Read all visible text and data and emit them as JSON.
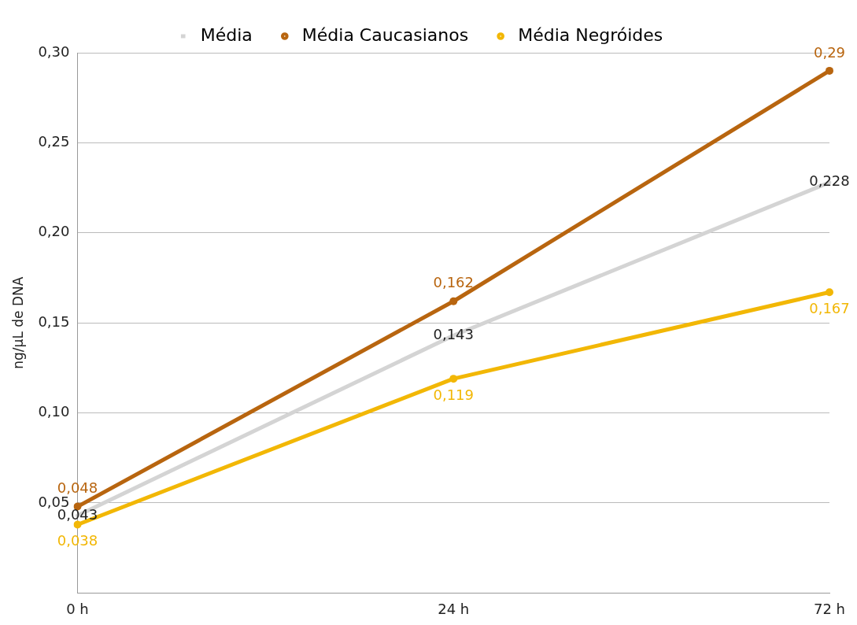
{
  "chart_data": {
    "type": "line",
    "ylabel": "ng/µL de DNA",
    "categories": [
      "0 h",
      "24 h",
      "72 h"
    ],
    "series": [
      {
        "name": "Média",
        "color": "#d4d4d4",
        "marker": "none",
        "values": [
          0.043,
          0.143,
          0.228
        ],
        "value_labels": [
          "0,043",
          "0,143",
          "0,228"
        ]
      },
      {
        "name": "Média Caucasianos",
        "color": "#b8650f",
        "marker": "circle",
        "values": [
          0.048,
          0.162,
          0.29
        ],
        "value_labels": [
          "0,048",
          "0,162",
          "0,29"
        ]
      },
      {
        "name": "Média Negróides",
        "color": "#f2b705",
        "marker": "circle",
        "values": [
          0.038,
          0.119,
          0.167
        ],
        "value_labels": [
          "0,038",
          "0,119",
          "0,167"
        ]
      }
    ],
    "ylim": [
      0,
      0.3
    ],
    "yticks": [
      {
        "value": 0.05,
        "label": "0,05"
      },
      {
        "value": 0.1,
        "label": "0,10"
      },
      {
        "value": 0.15,
        "label": "0,15"
      },
      {
        "value": 0.2,
        "label": "0,20"
      },
      {
        "value": 0.25,
        "label": "0,25"
      },
      {
        "value": 0.3,
        "label": "0,30"
      }
    ],
    "grid": "y",
    "legend": "top",
    "line_style": "solid"
  }
}
